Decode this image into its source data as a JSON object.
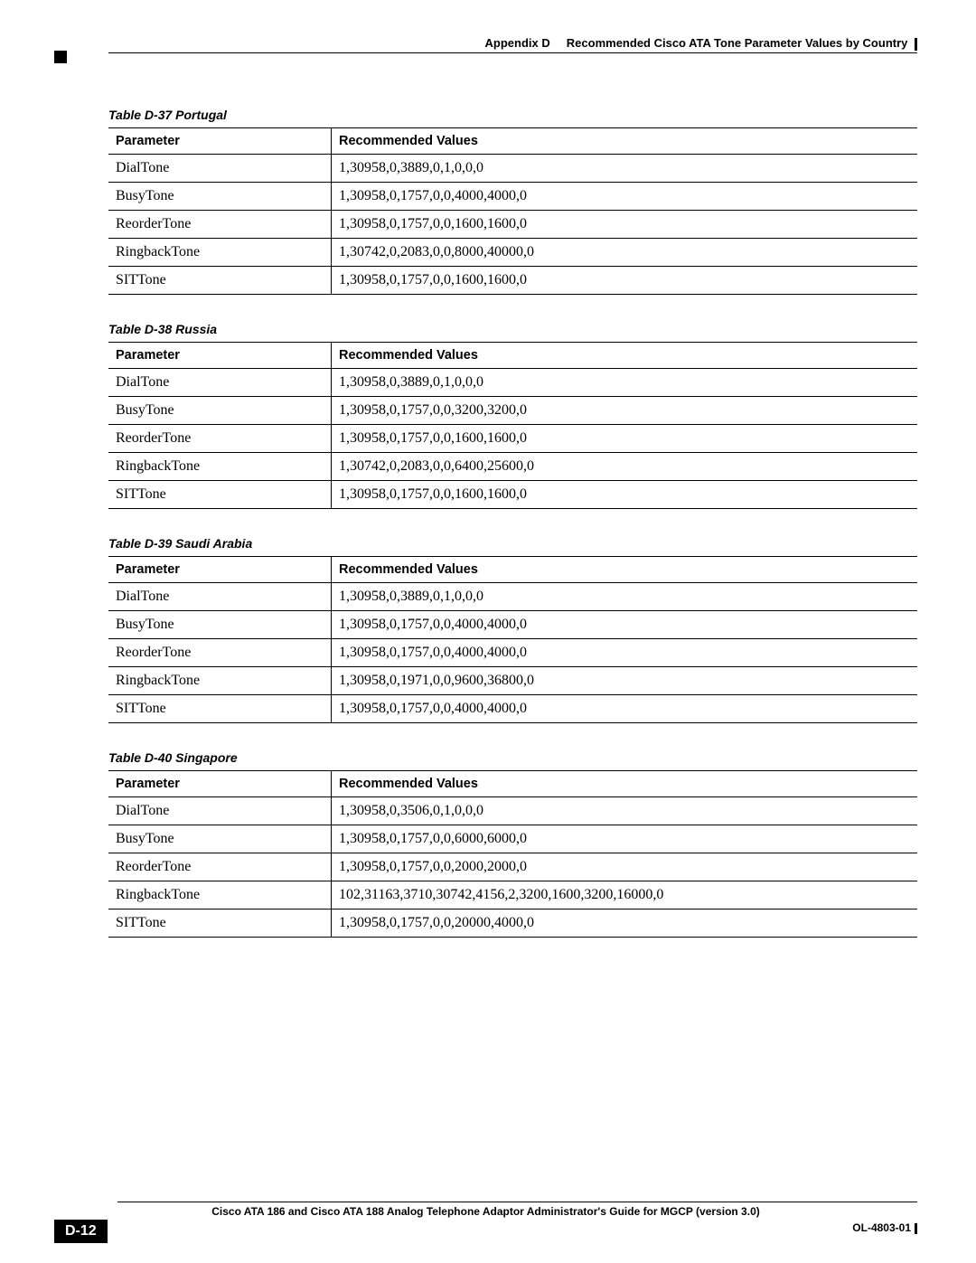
{
  "header": {
    "appendix": "Appendix D",
    "title": "Recommended Cisco ATA Tone Parameter Values by Country"
  },
  "columns": {
    "param": "Parameter",
    "values": "Recommended Values"
  },
  "tables": [
    {
      "caption": "Table D-37  Portugal",
      "rows": [
        {
          "p": "DialTone",
          "v": "1,30958,0,3889,0,1,0,0,0"
        },
        {
          "p": "BusyTone",
          "v": "1,30958,0,1757,0,0,4000,4000,0"
        },
        {
          "p": "ReorderTone",
          "v": "1,30958,0,1757,0,0,1600,1600,0"
        },
        {
          "p": "RingbackTone",
          "v": "1,30742,0,2083,0,0,8000,40000,0"
        },
        {
          "p": "SITTone",
          "v": "1,30958,0,1757,0,0,1600,1600,0"
        }
      ]
    },
    {
      "caption": "Table D-38  Russia",
      "rows": [
        {
          "p": "DialTone",
          "v": "1,30958,0,3889,0,1,0,0,0"
        },
        {
          "p": "BusyTone",
          "v": "1,30958,0,1757,0,0,3200,3200,0"
        },
        {
          "p": "ReorderTone",
          "v": "1,30958,0,1757,0,0,1600,1600,0"
        },
        {
          "p": "RingbackTone",
          "v": "1,30742,0,2083,0,0,6400,25600,0"
        },
        {
          "p": "SITTone",
          "v": "1,30958,0,1757,0,0,1600,1600,0"
        }
      ]
    },
    {
      "caption": "Table D-39  Saudi Arabia",
      "rows": [
        {
          "p": "DialTone",
          "v": "1,30958,0,3889,0,1,0,0,0"
        },
        {
          "p": "BusyTone",
          "v": "1,30958,0,1757,0,0,4000,4000,0"
        },
        {
          "p": "ReorderTone",
          "v": "1,30958,0,1757,0,0,4000,4000,0"
        },
        {
          "p": "RingbackTone",
          "v": "1,30958,0,1971,0,0,9600,36800,0"
        },
        {
          "p": "SITTone",
          "v": "1,30958,0,1757,0,0,4000,4000,0"
        }
      ]
    },
    {
      "caption": "Table D-40  Singapore",
      "rows": [
        {
          "p": "DialTone",
          "v": "1,30958,0,3506,0,1,0,0,0"
        },
        {
          "p": "BusyTone",
          "v": "1,30958,0,1757,0,0,6000,6000,0"
        },
        {
          "p": "ReorderTone",
          "v": "1,30958,0,1757,0,0,2000,2000,0"
        },
        {
          "p": "RingbackTone",
          "v": "102,31163,3710,30742,4156,2,3200,1600,3200,16000,0"
        },
        {
          "p": "SITTone",
          "v": "1,30958,0,1757,0,0,20000,4000,0"
        }
      ]
    }
  ],
  "footer": {
    "guide": "Cisco ATA 186 and Cisco ATA 188 Analog Telephone Adaptor Administrator's Guide for MGCP (version 3.0)",
    "page": "D-12",
    "docid": "OL-4803-01"
  }
}
